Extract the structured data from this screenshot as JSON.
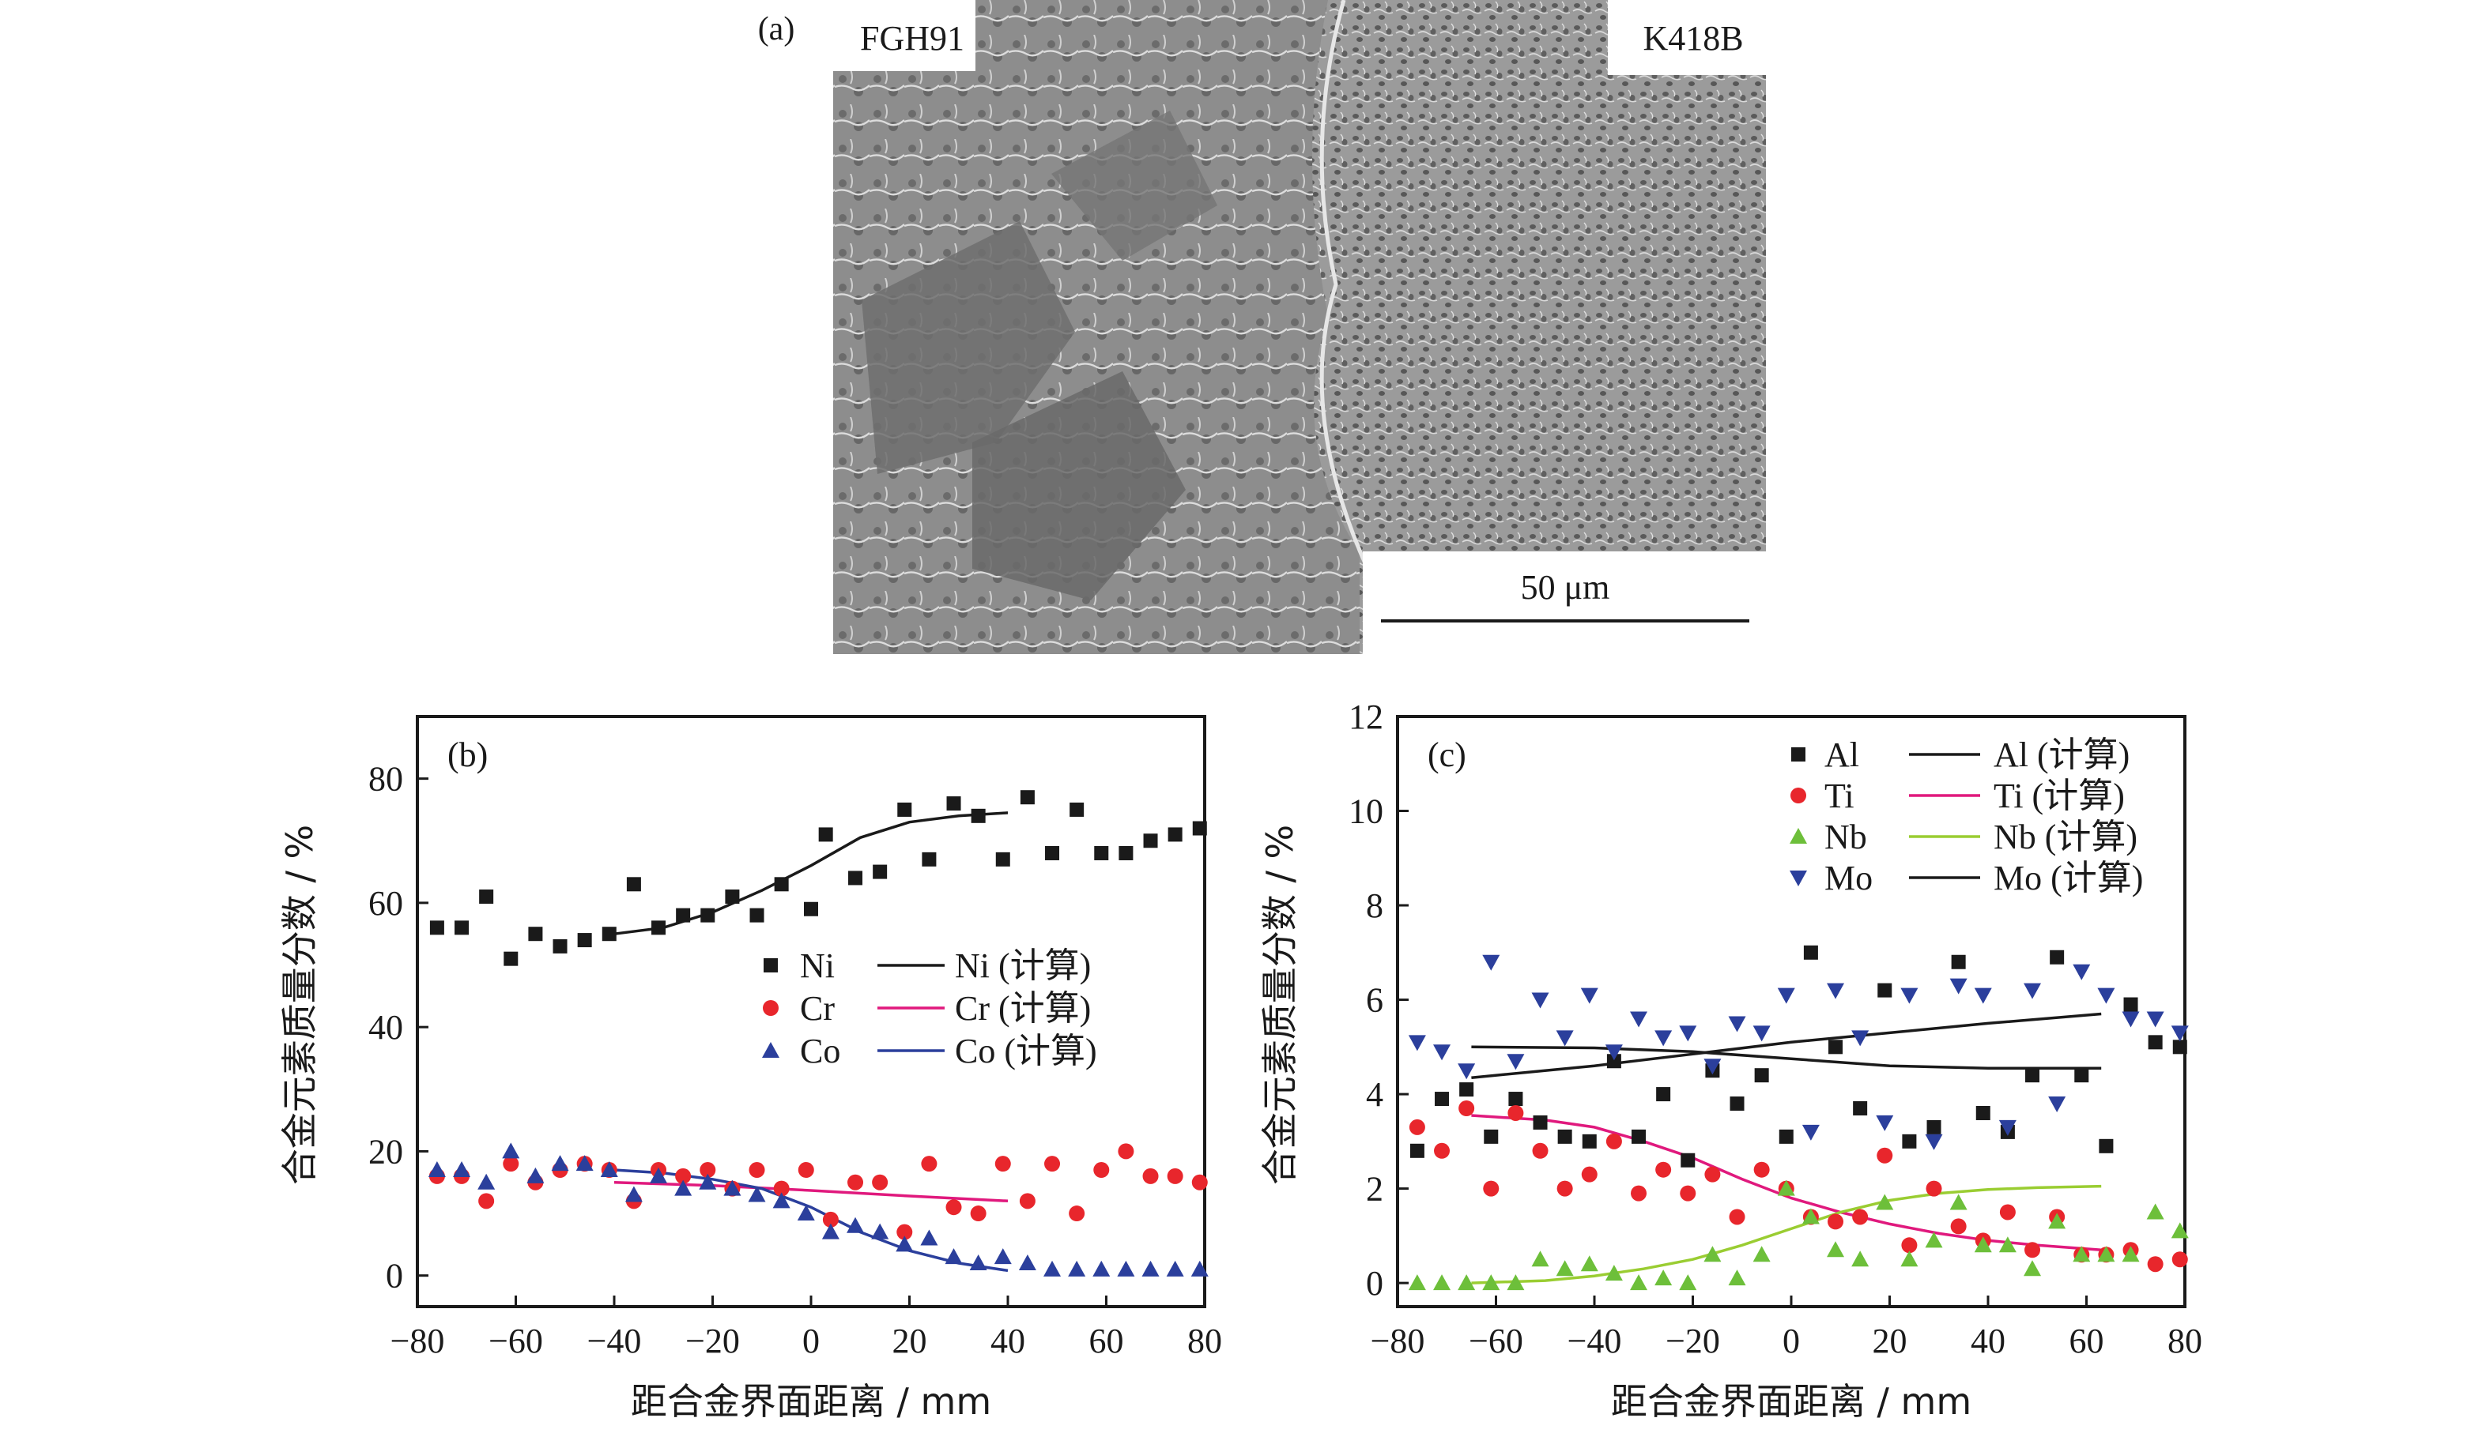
{
  "panel_a": {
    "label": "(a)",
    "left_label": "FGH91",
    "right_label": "K418B",
    "scale_bar": "50 μm"
  },
  "chart_data": [
    {
      "id": "b",
      "type": "scatter",
      "panel_label": "(b)",
      "title": "",
      "xlabel": "距合金界面距离 / mm",
      "ylabel": "合金元素质量分数 / %",
      "xlim": [
        -80,
        80
      ],
      "ylim": [
        -5,
        90
      ],
      "xticks": [
        -80,
        -60,
        -40,
        -20,
        0,
        20,
        40,
        60,
        80
      ],
      "yticks": [
        0,
        20,
        40,
        60,
        80
      ],
      "xtick_labels": [
        "−80",
        "−60",
        "−40",
        "−20",
        "0",
        "20",
        "40",
        "60",
        "80"
      ],
      "ytick_labels": [
        "0",
        "20",
        "40",
        "60",
        "80"
      ],
      "legend_position": "center-right",
      "series": [
        {
          "name": "Ni",
          "marker": "square",
          "color": "#1a1a1a",
          "x": [
            -76,
            -71,
            -66,
            -61,
            -56,
            -51,
            -46,
            -41,
            -36,
            -31,
            -26,
            -21,
            -16,
            -11,
            -6,
            0,
            3,
            9,
            14,
            19,
            24,
            29,
            34,
            39,
            44,
            49,
            54,
            59,
            64,
            69,
            74,
            79
          ],
          "y": [
            56,
            56,
            61,
            51,
            55,
            53,
            54,
            55,
            63,
            56,
            58,
            58,
            61,
            58,
            63,
            59,
            71,
            64,
            65,
            75,
            67,
            76,
            74,
            67,
            77,
            68,
            75,
            68,
            68,
            70,
            71,
            72
          ]
        },
        {
          "name": "Cr",
          "marker": "circle",
          "color": "#e8262c",
          "x": [
            -76,
            -71,
            -66,
            -61,
            -56,
            -51,
            -46,
            -41,
            -36,
            -31,
            -26,
            -21,
            -16,
            -11,
            -6,
            -1,
            4,
            9,
            14,
            19,
            24,
            29,
            34,
            39,
            44,
            49,
            54,
            59,
            64,
            69,
            74,
            79
          ],
          "y": [
            16,
            16,
            12,
            18,
            15,
            17,
            18,
            17,
            12,
            17,
            16,
            17,
            14,
            17,
            14,
            17,
            9,
            15,
            15,
            7,
            18,
            11,
            10,
            18,
            12,
            18,
            10,
            17,
            20,
            16,
            16,
            15
          ]
        },
        {
          "name": "Co",
          "marker": "triangle-up",
          "color": "#2b3f9c",
          "x": [
            -76,
            -71,
            -66,
            -61,
            -56,
            -51,
            -46,
            -41,
            -36,
            -31,
            -26,
            -21,
            -16,
            -11,
            -6,
            -1,
            4,
            9,
            14,
            19,
            24,
            29,
            34,
            39,
            44,
            49,
            54,
            59,
            64,
            69,
            74,
            79
          ],
          "y": [
            17,
            17,
            15,
            20,
            16,
            18,
            18,
            17,
            13,
            16,
            14,
            15,
            14,
            13,
            12,
            10,
            7,
            8,
            7,
            5,
            6,
            3,
            2,
            3,
            2,
            1,
            1,
            1,
            1,
            1,
            1,
            1
          ]
        }
      ],
      "fits": [
        {
          "name": "Ni (计算)",
          "color": "#1a1a1a",
          "x": [
            -40,
            -30,
            -20,
            -10,
            0,
            10,
            20,
            30,
            40
          ],
          "y": [
            55,
            56,
            58.5,
            62,
            66,
            70.5,
            73,
            74,
            74.5
          ]
        },
        {
          "name": "Cr (计算)",
          "color": "#e0197d",
          "x": [
            -40,
            -20,
            0,
            20,
            40
          ],
          "y": [
            15,
            14.5,
            13.7,
            12.8,
            12
          ]
        },
        {
          "name": "Co (计算)",
          "color": "#2b3f9c",
          "x": [
            -40,
            -30,
            -20,
            -10,
            0,
            10,
            20,
            30,
            40
          ],
          "y": [
            17,
            16.5,
            15.5,
            14,
            11,
            7,
            4,
            2,
            0.8
          ]
        }
      ]
    },
    {
      "id": "c",
      "type": "scatter",
      "panel_label": "(c)",
      "title": "",
      "xlabel": "距合金界面距离 / mm",
      "ylabel": "合金元素质量分数 / %",
      "xlim": [
        -80,
        80
      ],
      "ylim": [
        -0.5,
        12
      ],
      "xticks": [
        -80,
        -60,
        -40,
        -20,
        0,
        20,
        40,
        60,
        80
      ],
      "yticks": [
        0,
        2,
        4,
        6,
        8,
        10,
        12
      ],
      "xtick_labels": [
        "−80",
        "−60",
        "−40",
        "−20",
        "0",
        "20",
        "40",
        "60",
        "80"
      ],
      "ytick_labels": [
        "0",
        "2",
        "4",
        "6",
        "8",
        "10",
        "12"
      ],
      "legend_position": "top",
      "series": [
        {
          "name": "Al",
          "marker": "square",
          "color": "#1a1a1a",
          "x": [
            -76,
            -71,
            -66,
            -61,
            -56,
            -51,
            -46,
            -41,
            -36,
            -31,
            -26,
            -21,
            -16,
            -11,
            -6,
            -1,
            4,
            9,
            14,
            19,
            24,
            29,
            34,
            39,
            44,
            49,
            54,
            59,
            64,
            69,
            74,
            79
          ],
          "y": [
            2.8,
            3.9,
            4.1,
            3.1,
            3.9,
            3.4,
            3.1,
            3.0,
            4.7,
            3.1,
            4.0,
            2.6,
            4.5,
            3.8,
            4.4,
            3.1,
            7.0,
            5.0,
            3.7,
            6.2,
            3.0,
            3.3,
            6.8,
            3.6,
            3.2,
            4.4,
            6.9,
            4.4,
            2.9,
            5.9,
            5.1,
            5.0
          ]
        },
        {
          "name": "Ti",
          "marker": "circle",
          "color": "#e8262c",
          "x": [
            -76,
            -71,
            -66,
            -61,
            -56,
            -51,
            -46,
            -41,
            -36,
            -31,
            -26,
            -21,
            -16,
            -11,
            -6,
            -1,
            4,
            9,
            14,
            19,
            24,
            29,
            34,
            39,
            44,
            49,
            54,
            59,
            64,
            69,
            74,
            79
          ],
          "y": [
            3.3,
            2.8,
            3.7,
            2.0,
            3.6,
            2.8,
            2.0,
            2.3,
            3.0,
            1.9,
            2.4,
            1.9,
            2.3,
            1.4,
            2.4,
            2.0,
            1.4,
            1.3,
            1.4,
            2.7,
            0.8,
            2.0,
            1.2,
            0.9,
            1.5,
            0.7,
            1.4,
            0.6,
            0.6,
            0.7,
            0.4,
            0.5
          ]
        },
        {
          "name": "Nb",
          "marker": "triangle-up",
          "color": "#6dbf3a",
          "x": [
            -76,
            -71,
            -66,
            -61,
            -56,
            -51,
            -46,
            -41,
            -36,
            -31,
            -26,
            -21,
            -16,
            -11,
            -6,
            -1,
            4,
            9,
            14,
            19,
            24,
            29,
            34,
            39,
            44,
            49,
            54,
            59,
            64,
            69,
            74,
            79
          ],
          "y": [
            0.0,
            0.0,
            0.0,
            0.0,
            0.0,
            0.5,
            0.3,
            0.4,
            0.2,
            0.0,
            0.1,
            0.0,
            0.6,
            0.1,
            0.6,
            2.0,
            1.4,
            0.7,
            0.5,
            1.7,
            0.5,
            0.9,
            1.7,
            0.8,
            0.8,
            0.3,
            1.3,
            0.6,
            0.6,
            0.6,
            1.5,
            1.1
          ]
        },
        {
          "name": "Mo",
          "marker": "triangle-down",
          "color": "#2b3f9c",
          "x": [
            -76,
            -71,
            -66,
            -61,
            -56,
            -51,
            -46,
            -41,
            -36,
            -31,
            -26,
            -21,
            -16,
            -11,
            -6,
            -1,
            4,
            9,
            14,
            19,
            24,
            29,
            34,
            39,
            44,
            49,
            54,
            59,
            64,
            69,
            74,
            79
          ],
          "y": [
            5.1,
            4.9,
            4.5,
            6.8,
            4.7,
            6.0,
            5.2,
            6.1,
            4.9,
            5.6,
            5.2,
            5.3,
            4.6,
            5.5,
            5.3,
            6.1,
            3.2,
            6.2,
            5.2,
            3.4,
            6.1,
            3.0,
            6.3,
            6.1,
            3.3,
            6.2,
            3.8,
            6.6,
            6.1,
            5.6,
            5.6,
            5.3
          ]
        }
      ],
      "fits": [
        {
          "name": "Al (计算)",
          "color": "#1a1a1a",
          "x": [
            -65,
            -40,
            -20,
            0,
            20,
            40,
            63
          ],
          "y": [
            4.35,
            4.6,
            4.85,
            5.1,
            5.3,
            5.5,
            5.7
          ]
        },
        {
          "name": "Ti (计算)",
          "color": "#e0197d",
          "x": [
            -65,
            -50,
            -40,
            -30,
            -20,
            -10,
            0,
            10,
            20,
            30,
            40,
            50,
            63
          ],
          "y": [
            3.55,
            3.45,
            3.3,
            3.0,
            2.65,
            2.2,
            1.8,
            1.5,
            1.25,
            1.05,
            0.9,
            0.8,
            0.7
          ]
        },
        {
          "name": "Nb (计算)",
          "color": "#9acd32",
          "x": [
            -65,
            -50,
            -40,
            -30,
            -20,
            -10,
            0,
            10,
            20,
            30,
            40,
            50,
            63
          ],
          "y": [
            0.0,
            0.05,
            0.15,
            0.3,
            0.5,
            0.8,
            1.15,
            1.5,
            1.75,
            1.9,
            1.98,
            2.02,
            2.05
          ]
        },
        {
          "name": "Mo (计算)",
          "color": "#1a1a1a",
          "x": [
            -65,
            -40,
            -20,
            0,
            20,
            40,
            63
          ],
          "y": [
            5.0,
            4.98,
            4.9,
            4.75,
            4.6,
            4.55,
            4.55
          ]
        }
      ]
    }
  ]
}
